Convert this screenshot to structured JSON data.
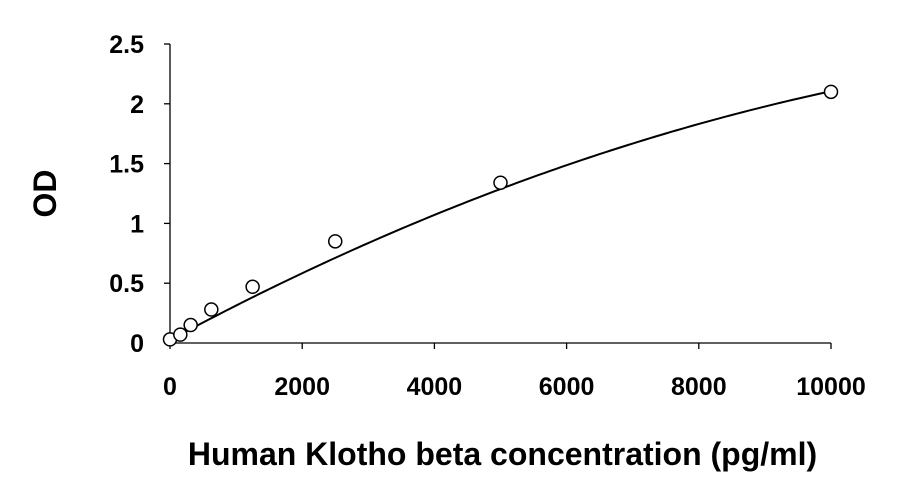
{
  "chart_data": {
    "type": "scatter",
    "title": "",
    "xlabel": "Human Klotho beta concentration (pg/ml)",
    "ylabel": "OD",
    "xlim": [
      0,
      10000
    ],
    "ylim": [
      0,
      2.5
    ],
    "xticks": [
      0,
      2000,
      4000,
      6000,
      8000,
      10000
    ],
    "yticks": [
      0,
      0.5,
      1,
      1.5,
      2,
      2.5
    ],
    "xtick_labels": [
      "0",
      "2000",
      "4000",
      "6000",
      "8000",
      "10000"
    ],
    "ytick_labels": [
      "0",
      "0.5",
      "1",
      "1.5",
      "2",
      "2.5"
    ],
    "grid": false,
    "legend": "none",
    "series": [
      {
        "marker": "open-circle",
        "x": [
          0,
          156.25,
          312.5,
          625,
          1250,
          2500,
          5000,
          10000
        ],
        "y": [
          0.03,
          0.07,
          0.15,
          0.28,
          0.47,
          0.85,
          1.34,
          2.1
        ]
      }
    ],
    "fit": {
      "type": "polynomial-2",
      "x_range": [
        0,
        10000
      ],
      "coefficients": [
        0.025,
        0.000297,
        -8.9e-09
      ]
    },
    "colors": {
      "marker_fill": "#ffffff",
      "marker_stroke": "#000000",
      "line": "#000000"
    }
  }
}
